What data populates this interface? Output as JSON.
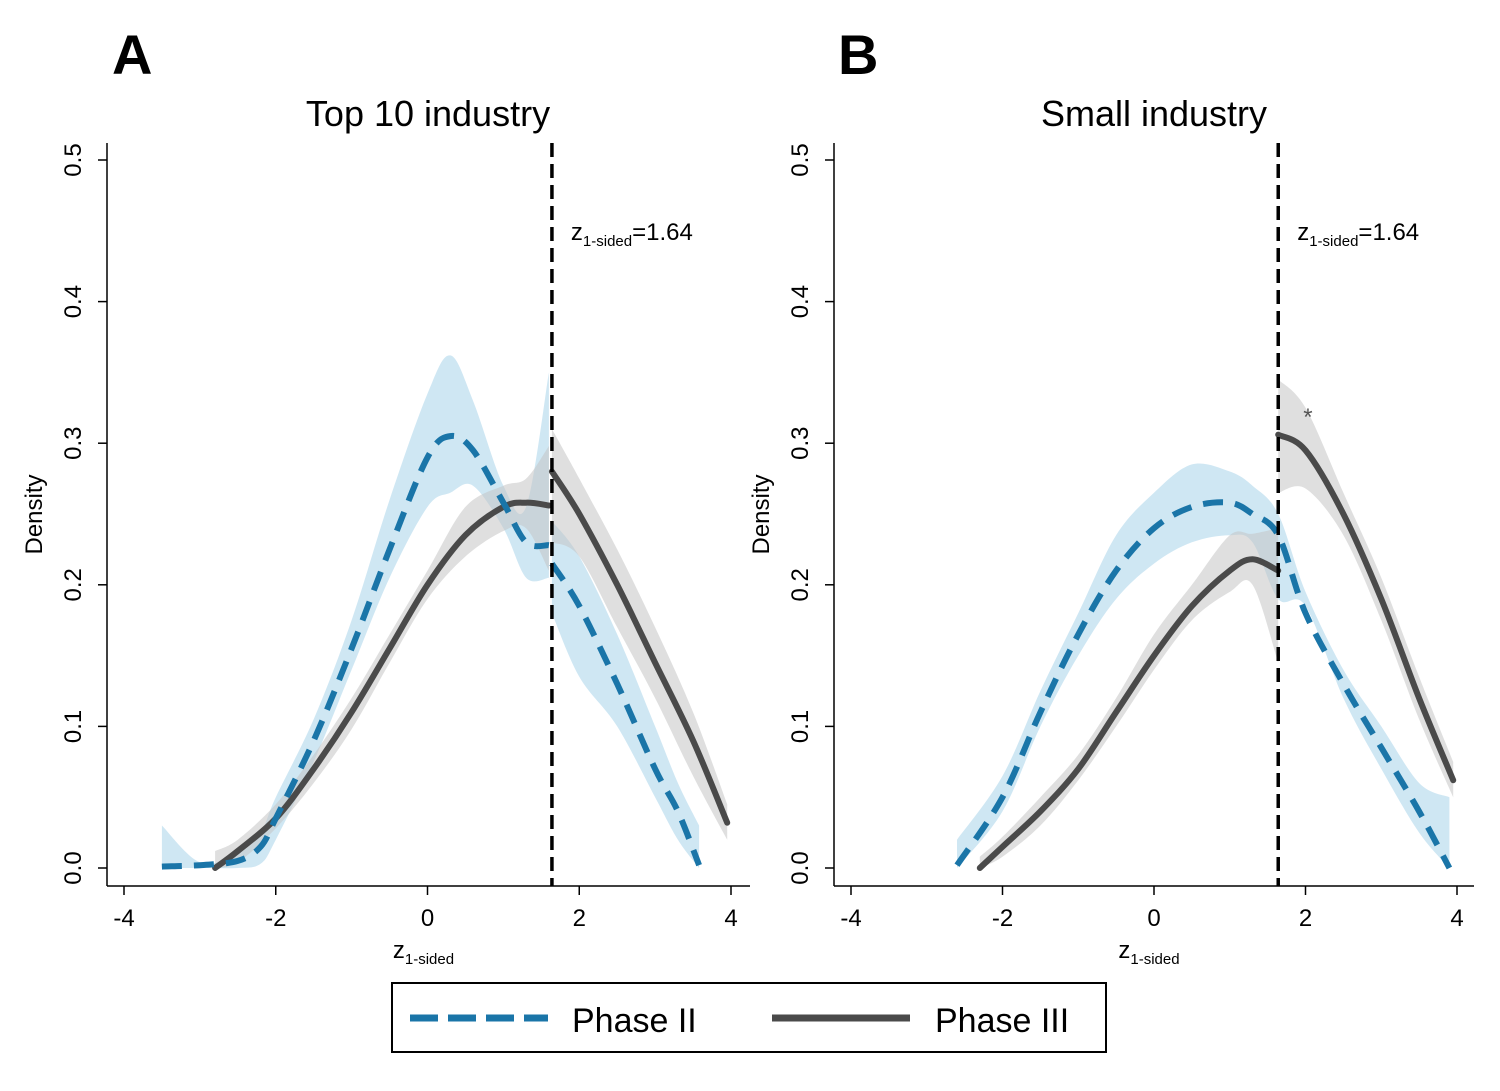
{
  "chart_data": [
    {
      "type": "line",
      "panel": "A",
      "title": "Top 10 industry",
      "xlabel": "z",
      "xlabel_sub": "1-sided",
      "ylabel": "Density",
      "xlim": [
        -4,
        4
      ],
      "ylim": [
        0,
        0.5
      ],
      "xticks": [
        -4,
        -2,
        0,
        2,
        4
      ],
      "xtick_labels": [
        "-4",
        "-2",
        "0",
        "2",
        "4"
      ],
      "yticks": [
        0,
        0.1,
        0.2,
        0.3,
        0.4,
        0.5
      ],
      "ytick_labels": [
        "0.0",
        "0.1",
        "0.2",
        "0.3",
        "0.4",
        "0.5"
      ],
      "threshold": {
        "x": 1.64,
        "label": "z",
        "label_sub": "1-sided",
        "label_value": "=1.64"
      },
      "star": "",
      "series": [
        {
          "name": "Phase II",
          "style": "dashed",
          "color": "#1a75a8",
          "band_color": "#a8d3ea",
          "segments": [
            {
              "x": [
                -3.5,
                -3.0,
                -2.5,
                -2.2,
                -2.0,
                -1.5,
                -1.0,
                -0.5,
                0.0,
                0.3,
                0.6,
                1.0,
                1.3,
                1.6
              ],
              "y": [
                0.001,
                0.002,
                0.005,
                0.015,
                0.035,
                0.09,
                0.155,
                0.225,
                0.29,
                0.305,
                0.295,
                0.258,
                0.23,
                0.228
              ],
              "lo": [
                0.0,
                0.0,
                0.0,
                0.003,
                0.02,
                0.075,
                0.14,
                0.205,
                0.255,
                0.265,
                0.27,
                0.24,
                0.205,
                0.205
              ],
              "hi": [
                0.03,
                0.004,
                0.01,
                0.025,
                0.05,
                0.105,
                0.175,
                0.26,
                0.335,
                0.362,
                0.33,
                0.27,
                0.255,
                0.35
              ]
            },
            {
              "x": [
                1.64,
                2.0,
                2.5,
                3.0,
                3.3,
                3.58
              ],
              "y": [
                0.215,
                0.185,
                0.13,
                0.07,
                0.04,
                0.002
              ],
              "lo": [
                0.18,
                0.135,
                0.1,
                0.05,
                0.02,
                0.0
              ],
              "hi": [
                0.245,
                0.22,
                0.165,
                0.1,
                0.06,
                0.03
              ]
            }
          ]
        },
        {
          "name": "Phase III",
          "style": "solid",
          "color": "#4a4a4a",
          "band_color": "#c4c4c4",
          "segments": [
            {
              "x": [
                -2.8,
                -2.5,
                -2.0,
                -1.5,
                -1.0,
                -0.5,
                0.0,
                0.5,
                1.0,
                1.3,
                1.6
              ],
              "y": [
                0.0,
                0.012,
                0.035,
                0.07,
                0.11,
                0.155,
                0.2,
                0.235,
                0.255,
                0.258,
                0.256
              ],
              "lo": [
                0.0,
                0.004,
                0.028,
                0.06,
                0.098,
                0.145,
                0.19,
                0.22,
                0.238,
                0.24,
                0.21
              ],
              "hi": [
                0.012,
                0.02,
                0.045,
                0.08,
                0.12,
                0.165,
                0.21,
                0.255,
                0.27,
                0.275,
                0.298
              ]
            },
            {
              "x": [
                1.64,
                2.0,
                2.5,
                3.0,
                3.5,
                3.95
              ],
              "y": [
                0.28,
                0.25,
                0.2,
                0.145,
                0.09,
                0.032
              ],
              "lo": [
                0.23,
                0.22,
                0.17,
                0.12,
                0.065,
                0.02
              ],
              "hi": [
                0.31,
                0.275,
                0.225,
                0.17,
                0.11,
                0.045
              ]
            }
          ]
        }
      ]
    },
    {
      "type": "line",
      "panel": "B",
      "title": "Small industry",
      "xlabel": "z",
      "xlabel_sub": "1-sided",
      "ylabel": "Density",
      "xlim": [
        -4,
        4
      ],
      "ylim": [
        0,
        0.5
      ],
      "xticks": [
        -4,
        -2,
        0,
        2,
        4
      ],
      "xtick_labels": [
        "-4",
        "-2",
        "0",
        "2",
        "4"
      ],
      "yticks": [
        0,
        0.1,
        0.2,
        0.3,
        0.4,
        0.5
      ],
      "ytick_labels": [
        "0.0",
        "0.1",
        "0.2",
        "0.3",
        "0.4",
        "0.5"
      ],
      "threshold": {
        "x": 1.64,
        "label": "z",
        "label_sub": "1-sided",
        "label_value": "=1.64"
      },
      "star": "*",
      "star_x": 2.05,
      "star_y": 0.32,
      "series": [
        {
          "name": "Phase II",
          "style": "dashed",
          "color": "#1a75a8",
          "band_color": "#a8d3ea",
          "segments": [
            {
              "x": [
                -2.6,
                -2.0,
                -1.5,
                -1.0,
                -0.5,
                0.0,
                0.5,
                1.0,
                1.3,
                1.64,
                2.0,
                2.5,
                3.0,
                3.5,
                3.9
              ],
              "y": [
                0.002,
                0.05,
                0.11,
                0.165,
                0.21,
                0.24,
                0.255,
                0.258,
                0.25,
                0.235,
                0.18,
                0.13,
                0.085,
                0.04,
                0.0
              ],
              "lo": [
                0.0,
                0.04,
                0.1,
                0.15,
                0.19,
                0.215,
                0.23,
                0.235,
                0.23,
                0.19,
                0.185,
                0.12,
                0.07,
                0.025,
                0.0
              ],
              "hi": [
                0.02,
                0.065,
                0.125,
                0.18,
                0.235,
                0.265,
                0.285,
                0.28,
                0.27,
                0.25,
                0.195,
                0.14,
                0.1,
                0.06,
                0.05
              ]
            }
          ]
        },
        {
          "name": "Phase III",
          "style": "solid",
          "color": "#4a4a4a",
          "band_color": "#c4c4c4",
          "segments": [
            {
              "x": [
                -2.3,
                -2.0,
                -1.5,
                -1.0,
                -0.5,
                0.0,
                0.5,
                1.0,
                1.3,
                1.64
              ],
              "y": [
                0.0,
                0.015,
                0.04,
                0.07,
                0.11,
                0.15,
                0.185,
                0.21,
                0.218,
                0.21
              ],
              "lo": [
                0.0,
                0.008,
                0.03,
                0.062,
                0.1,
                0.14,
                0.175,
                0.195,
                0.2,
                0.145
              ],
              "hi": [
                0.008,
                0.022,
                0.05,
                0.08,
                0.12,
                0.165,
                0.2,
                0.235,
                0.236,
                0.24
              ]
            },
            {
              "x": [
                1.64,
                2.0,
                2.5,
                3.0,
                3.5,
                3.95
              ],
              "y": [
                0.306,
                0.295,
                0.25,
                0.19,
                0.12,
                0.062
              ],
              "lo": [
                0.265,
                0.268,
                0.235,
                0.175,
                0.105,
                0.05
              ],
              "hi": [
                0.345,
                0.325,
                0.265,
                0.205,
                0.135,
                0.075
              ]
            }
          ]
        }
      ]
    }
  ],
  "legend": [
    {
      "label": "Phase II",
      "style": "dashed",
      "color": "#1a75a8"
    },
    {
      "label": "Phase III",
      "style": "solid",
      "color": "#4a4a4a"
    }
  ]
}
